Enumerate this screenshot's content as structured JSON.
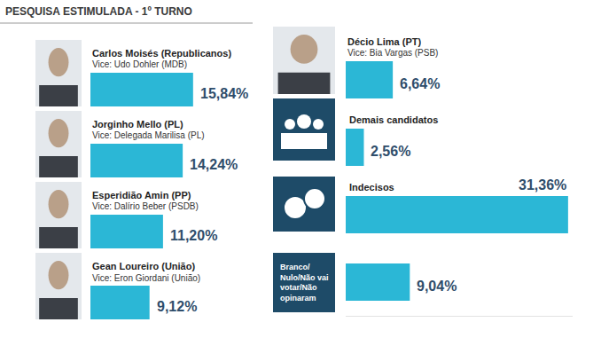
{
  "chart_data": {
    "type": "bar",
    "orientation": "horizontal",
    "title": "PESQUISA ESTIMULADA - 1º TURNO",
    "categories": [
      "Carlos Moisés (Republicanos)",
      "Jorginho Mello (PL)",
      "Esperidião Amin (PP)",
      "Gean Loureiro (União)",
      "Décio Lima (PT)",
      "Demais candidatos",
      "Indecisos",
      "Branco/\nNulo/Não vai\nvotar/Não\nopinaram"
    ],
    "values": [
      15.84,
      14.24,
      11.2,
      9.12,
      6.64,
      2.56,
      31.36,
      9.04
    ],
    "value_labels": [
      "15,84%",
      "14,24%",
      "11,20%",
      "9,12%",
      "6,64%",
      "2,56%",
      "31,36%",
      "9,04%"
    ],
    "annotations": [
      {
        "category": "Carlos Moisés (Republicanos)",
        "text": "Vice: Udo Dohler (MDB)"
      },
      {
        "category": "Jorginho Mello (PL)",
        "text": "Vice: Delegada Marilisa (PL)"
      },
      {
        "category": "Esperidião Amin (PP)",
        "text": "Vice: Dalírio Beber (PSDB)"
      },
      {
        "category": "Gean Loureiro (União)",
        "text": "Vice: Eron Giordani (União)"
      },
      {
        "category": "Décio Lima (PT)",
        "text": "Vice: Bia Vargas (PSB)"
      }
    ],
    "color": "#2bb7d6",
    "data_labels": true,
    "tick_labels": false,
    "xlim": [
      0,
      32
    ]
  }
}
